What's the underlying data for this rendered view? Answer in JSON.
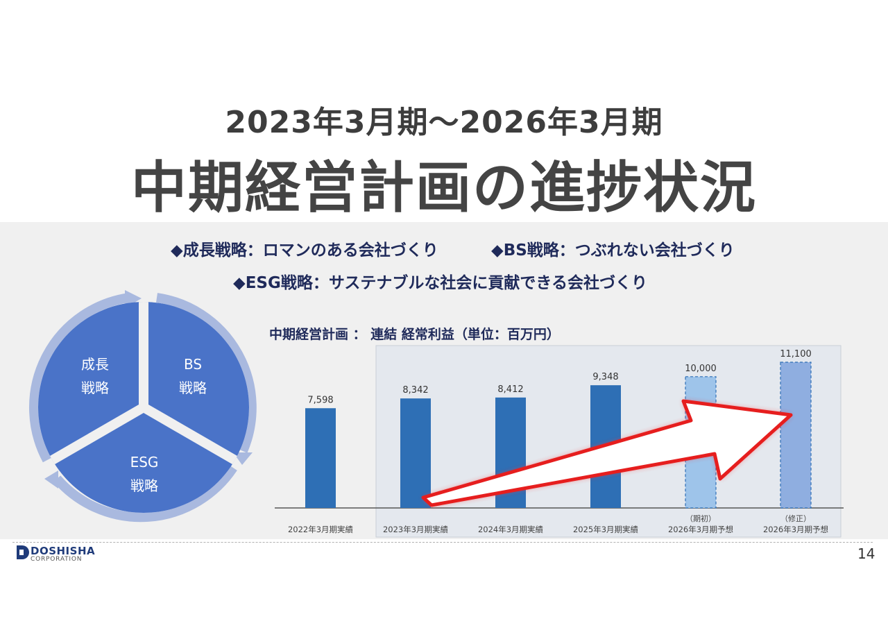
{
  "header": {
    "period": "2023年3月期～2026年3月期",
    "title": "中期経営計画の進捗状況"
  },
  "strategies": [
    {
      "marker": "◆",
      "text": "成長戦略：ロマンのある会社づくり"
    },
    {
      "marker": "◆",
      "text": "BS戦略：つぶれない会社づくり"
    },
    {
      "marker": "◆",
      "text": "ESG戦略：サステナブルな社会に貢献できる会社づくり"
    }
  ],
  "cycle": {
    "segments": [
      {
        "line1": "成長",
        "line2": "戦略"
      },
      {
        "line1": "BS",
        "line2": "戦略"
      },
      {
        "line1": "ESG",
        "line2": "戦略"
      }
    ]
  },
  "chart_title": "中期経営計画 ： 連結 経常利益（単位：百万円）",
  "chart_data": {
    "type": "bar",
    "title": "中期経営計画 ： 連結 経常利益（単位：百万円）",
    "categories": [
      "2022年3月期実績",
      "2023年3月期実績",
      "2024年3月期実績",
      "2025年3月期実績",
      "2026年3月期予想",
      "2026年3月期予想"
    ],
    "category_notes": [
      "",
      "",
      "",
      "",
      "（期初）",
      "（修正）"
    ],
    "values": [
      7598,
      8342,
      8412,
      9348,
      10000,
      11100
    ],
    "value_labels": [
      "7,598",
      "8,342",
      "8,412",
      "9,348",
      "10,000",
      "11,100"
    ],
    "bar_status": [
      "actual",
      "actual",
      "actual",
      "actual",
      "forecast",
      "forecast"
    ],
    "colors": {
      "actual": "#2e6fb5",
      "forecast_initial": "#9ec4ea",
      "forecast_revised": "#8faee0",
      "arrow": "#e61e1e",
      "panel": "#e4e8ee"
    }
  },
  "footer": {
    "logo_main": "DOSHISHA",
    "logo_sub": "CORPORATION",
    "page_number": "14"
  }
}
